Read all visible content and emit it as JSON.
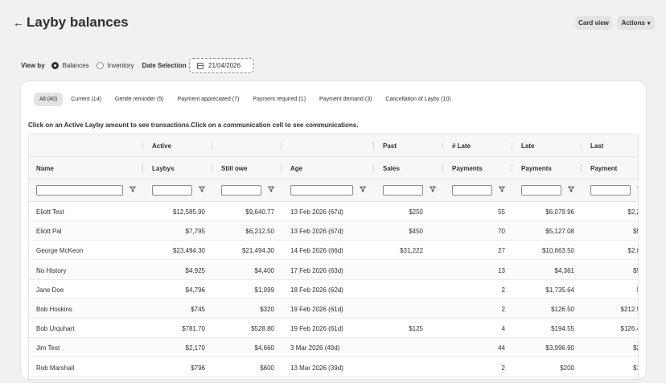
{
  "header": {
    "title": "Layby balances",
    "card_view_label": "Card view",
    "actions_label": "Actions"
  },
  "filters": {
    "view_by_label": "View by",
    "options": [
      "Balances",
      "Inventory"
    ],
    "selected": "Balances",
    "date_label": "Date Selection",
    "date_value": "21/04/2026"
  },
  "tabs": [
    {
      "label": "All (40)",
      "active": true
    },
    {
      "label": "Current (14)"
    },
    {
      "label": "Gentle reminder (5)"
    },
    {
      "label": "Payment appreciated (7)"
    },
    {
      "label": "Payment required (1)"
    },
    {
      "label": "Payment demand (3)"
    },
    {
      "label": "Cancellation of Layby (10)"
    }
  ],
  "instruction": "Click on an Active Layby amount to see transactions.Click on a communication cell to see communications.",
  "table": {
    "header_top": [
      "",
      "Active",
      "",
      "",
      "Past",
      "# Late",
      "Late",
      "Last"
    ],
    "header_bottom": [
      "Name",
      "Laybys",
      "Still owe",
      "Age",
      "Sales",
      "Payments",
      "Payments",
      "Payment"
    ],
    "rows": [
      [
        "Eliott Test",
        "$12,585.90",
        "$9,640.77",
        "13 Feb 2026 (67d)",
        "$250",
        "55",
        "$6,079.96",
        "$2,2"
      ],
      [
        "Eliott Pal",
        "$7,795",
        "$6,212.50",
        "13 Feb 2026 (67d)",
        "$450",
        "70",
        "$5,127.08",
        "$5"
      ],
      [
        "George McKeon",
        "$23,494.30",
        "$21,494.30",
        "14 Feb 2026 (66d)",
        "$31,222",
        "27",
        "$10,663.50",
        "$2,0"
      ],
      [
        "No History",
        "$4,925",
        "$4,400",
        "17 Feb 2026 (63d)",
        "",
        "13",
        "$4,361",
        "$5"
      ],
      [
        "Jane Doe",
        "$4,796",
        "$1,999",
        "18 Feb 2026 (62d)",
        "",
        "2",
        "$1,735.64",
        "$"
      ],
      [
        "Bob Hoskins",
        "$745",
        "$320",
        "19 Feb 2026 (61d)",
        "",
        "2",
        "$126.50",
        "$212.5"
      ],
      [
        "Bob Urquhart",
        "$781.70",
        "$528.80",
        "19 Feb 2026 (61d)",
        "$125",
        "4",
        "$194.55",
        "$126.4"
      ],
      [
        "Jim Test",
        "$2,170",
        "$4,660",
        "3 Mar 2026 (49d)",
        "",
        "44",
        "$3,996.90",
        "$2"
      ],
      [
        "Rob Marshall",
        "$796",
        "$600",
        "13 Mar 2026 (39d)",
        "",
        "2",
        "$200",
        "$1"
      ]
    ]
  }
}
